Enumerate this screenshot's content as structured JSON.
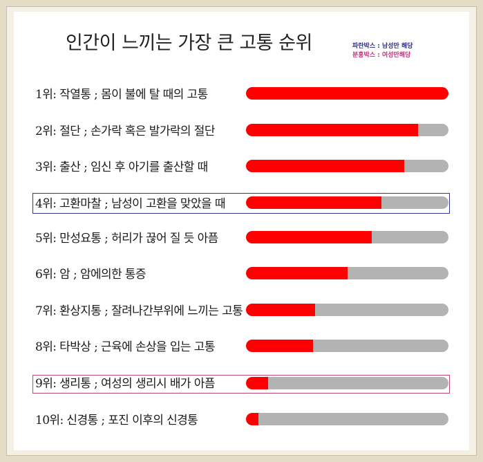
{
  "chart_data": {
    "type": "bar",
    "orientation": "horizontal",
    "title": "인간이 느끼는 가장 큰 고통 순위",
    "legend": [
      {
        "text": "파란박스 : 남성만 해당",
        "color": "#2b2e8c"
      },
      {
        "text": "분홍박스 : 여성만해당",
        "color": "#c2337a"
      }
    ],
    "xlim": [
      0,
      100
    ],
    "colors": {
      "fill": "#fe0000",
      "track": "#b3b3b3"
    },
    "categories": [
      "1위: 작열통 ; 몸이 불에 탈 때의 고통",
      "2위: 절단 ; 손가락 혹은 발가락의 절단",
      "3위: 출산 ; 임신 후 아기를 출산할 때",
      "4위: 고환마찰 ; 남성이 고환을 맞았을 때",
      "5위: 만성요통 ; 허리가 끊어 질 듯 아픔",
      "6위: 암 ; 암에의한 통증",
      "7위: 환상지통 ; 잘려나간부위에 느끼는 고통",
      "8위: 타박상 ; 근육에 손상을 입는 고통",
      "9위: 생리통 ; 여성의 생리시 배가 아픔",
      "10위: 신경통 ; 포진 이후의 신경통"
    ],
    "values": [
      100,
      85,
      78,
      67,
      62,
      50,
      34,
      33,
      11,
      6
    ],
    "highlight": {
      "male_only_rank": 4,
      "female_only_rank": 9
    }
  }
}
